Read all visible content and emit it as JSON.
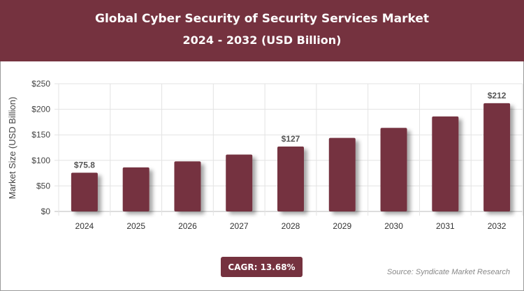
{
  "header": {
    "title": "Global Cyber Security of Security Services Market",
    "subtitle": "2024 - 2032 (USD Billion)"
  },
  "chart_data": {
    "type": "bar",
    "title": "Global Cyber Security of Security Services Market",
    "subtitle": "2024 - 2032 (USD Billion)",
    "ylabel": "Market Size (USD Billion)",
    "xlabel": "",
    "categories": [
      "2024",
      "2025",
      "2026",
      "2027",
      "2028",
      "2029",
      "2030",
      "2031",
      "2032"
    ],
    "values": [
      75.8,
      86.2,
      98.0,
      111.4,
      127,
      143.9,
      163.6,
      186.0,
      212
    ],
    "data_labels": {
      "0": "$75.8",
      "4": "$127",
      "8": "$212"
    },
    "ylim": [
      0,
      250
    ],
    "yticks": [
      "$0",
      "$50",
      "$100",
      "$150",
      "$200",
      "$250"
    ],
    "grid": true,
    "bar_color": "#75323f"
  },
  "footer": {
    "cagr": "CAGR: 13.68%",
    "source": "Source: Syndicate Market Research"
  }
}
